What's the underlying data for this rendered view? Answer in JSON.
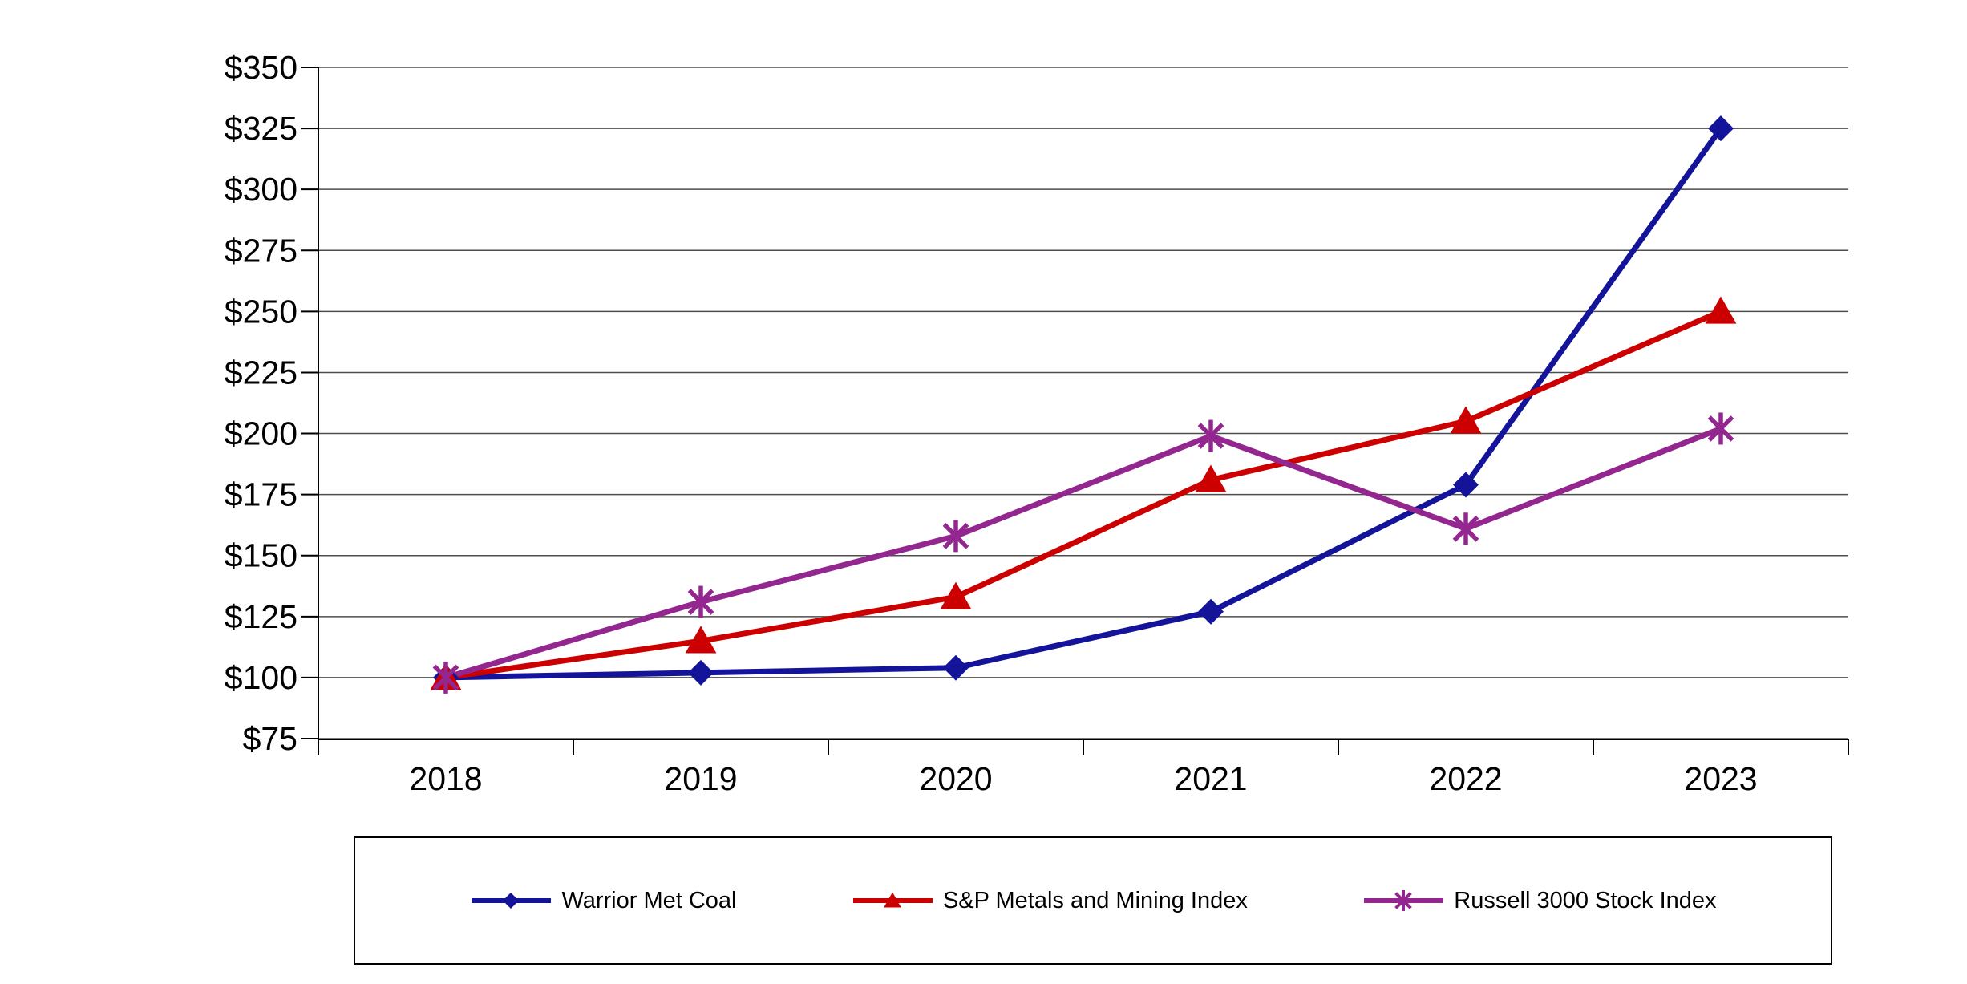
{
  "chart_data": {
    "type": "line",
    "categories": [
      "2018",
      "2019",
      "2020",
      "2021",
      "2022",
      "2023"
    ],
    "series": [
      {
        "name": "Warrior Met Coal",
        "color": "#14149A",
        "marker": "diamond",
        "values": [
          100,
          102,
          104,
          127,
          179,
          325
        ]
      },
      {
        "name": "S&P Metals and Mining Index",
        "color": "#CC0000",
        "marker": "triangle",
        "values": [
          100,
          115,
          133,
          181,
          205,
          250
        ]
      },
      {
        "name": "Russell 3000 Stock Index",
        "color": "#93278F",
        "marker": "asterisk",
        "values": [
          100,
          131,
          158,
          199,
          161,
          202
        ]
      }
    ],
    "y_axis": {
      "min": 75,
      "max": 350,
      "step": 25,
      "tick_labels": [
        "$75",
        "$100",
        "$125",
        "$150",
        "$175",
        "$200",
        "$225",
        "$250",
        "$275",
        "$300",
        "$325",
        "$350"
      ]
    },
    "x_axis": {
      "tick_labels": [
        "2018",
        "2019",
        "2020",
        "2021",
        "2022",
        "2023"
      ]
    },
    "grid": true,
    "legend_position": "bottom",
    "styles": {
      "gridline_color": "#4d4d4d",
      "axis_color": "#000000",
      "label_color": "#000000",
      "background": "#ffffff"
    }
  }
}
